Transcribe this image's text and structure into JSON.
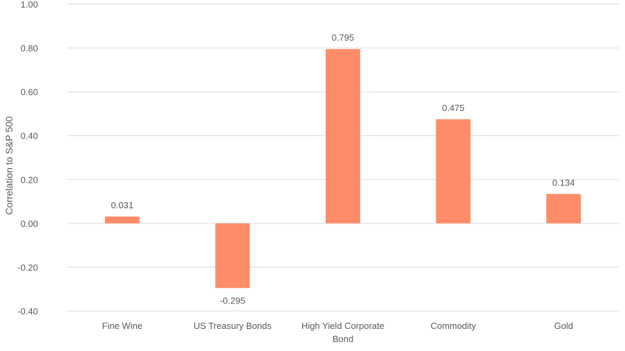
{
  "chart_data": {
    "type": "bar",
    "title": "",
    "xlabel": "",
    "ylabel": "Correlation to S&P 500",
    "ylim": [
      -0.4,
      1.0
    ],
    "yticks": [
      -0.4,
      -0.2,
      0.0,
      0.2,
      0.4,
      0.6,
      0.8,
      1.0
    ],
    "ytick_labels": [
      "-0.40",
      "-0.20",
      "0.00",
      "0.20",
      "0.40",
      "0.60",
      "0.80",
      "1.00"
    ],
    "grid": true,
    "legend": "none",
    "categories": [
      "Fine Wine",
      "US Treasury Bonds",
      "High Yield Corporate Bond",
      "Commodity",
      "Gold"
    ],
    "category_lines": [
      [
        "Fine Wine"
      ],
      [
        "US Treasury Bonds"
      ],
      [
        "High Yield Corporate",
        "Bond"
      ],
      [
        "Commodity"
      ],
      [
        "Gold"
      ]
    ],
    "values": [
      0.031,
      -0.295,
      0.795,
      0.475,
      0.134
    ],
    "data_labels": [
      "0.031",
      "-0.295",
      "0.795",
      "0.475",
      "0.134"
    ],
    "colors": {
      "bar": "#FF8C69",
      "grid": "#D9D9D9",
      "text": "#595959"
    }
  }
}
